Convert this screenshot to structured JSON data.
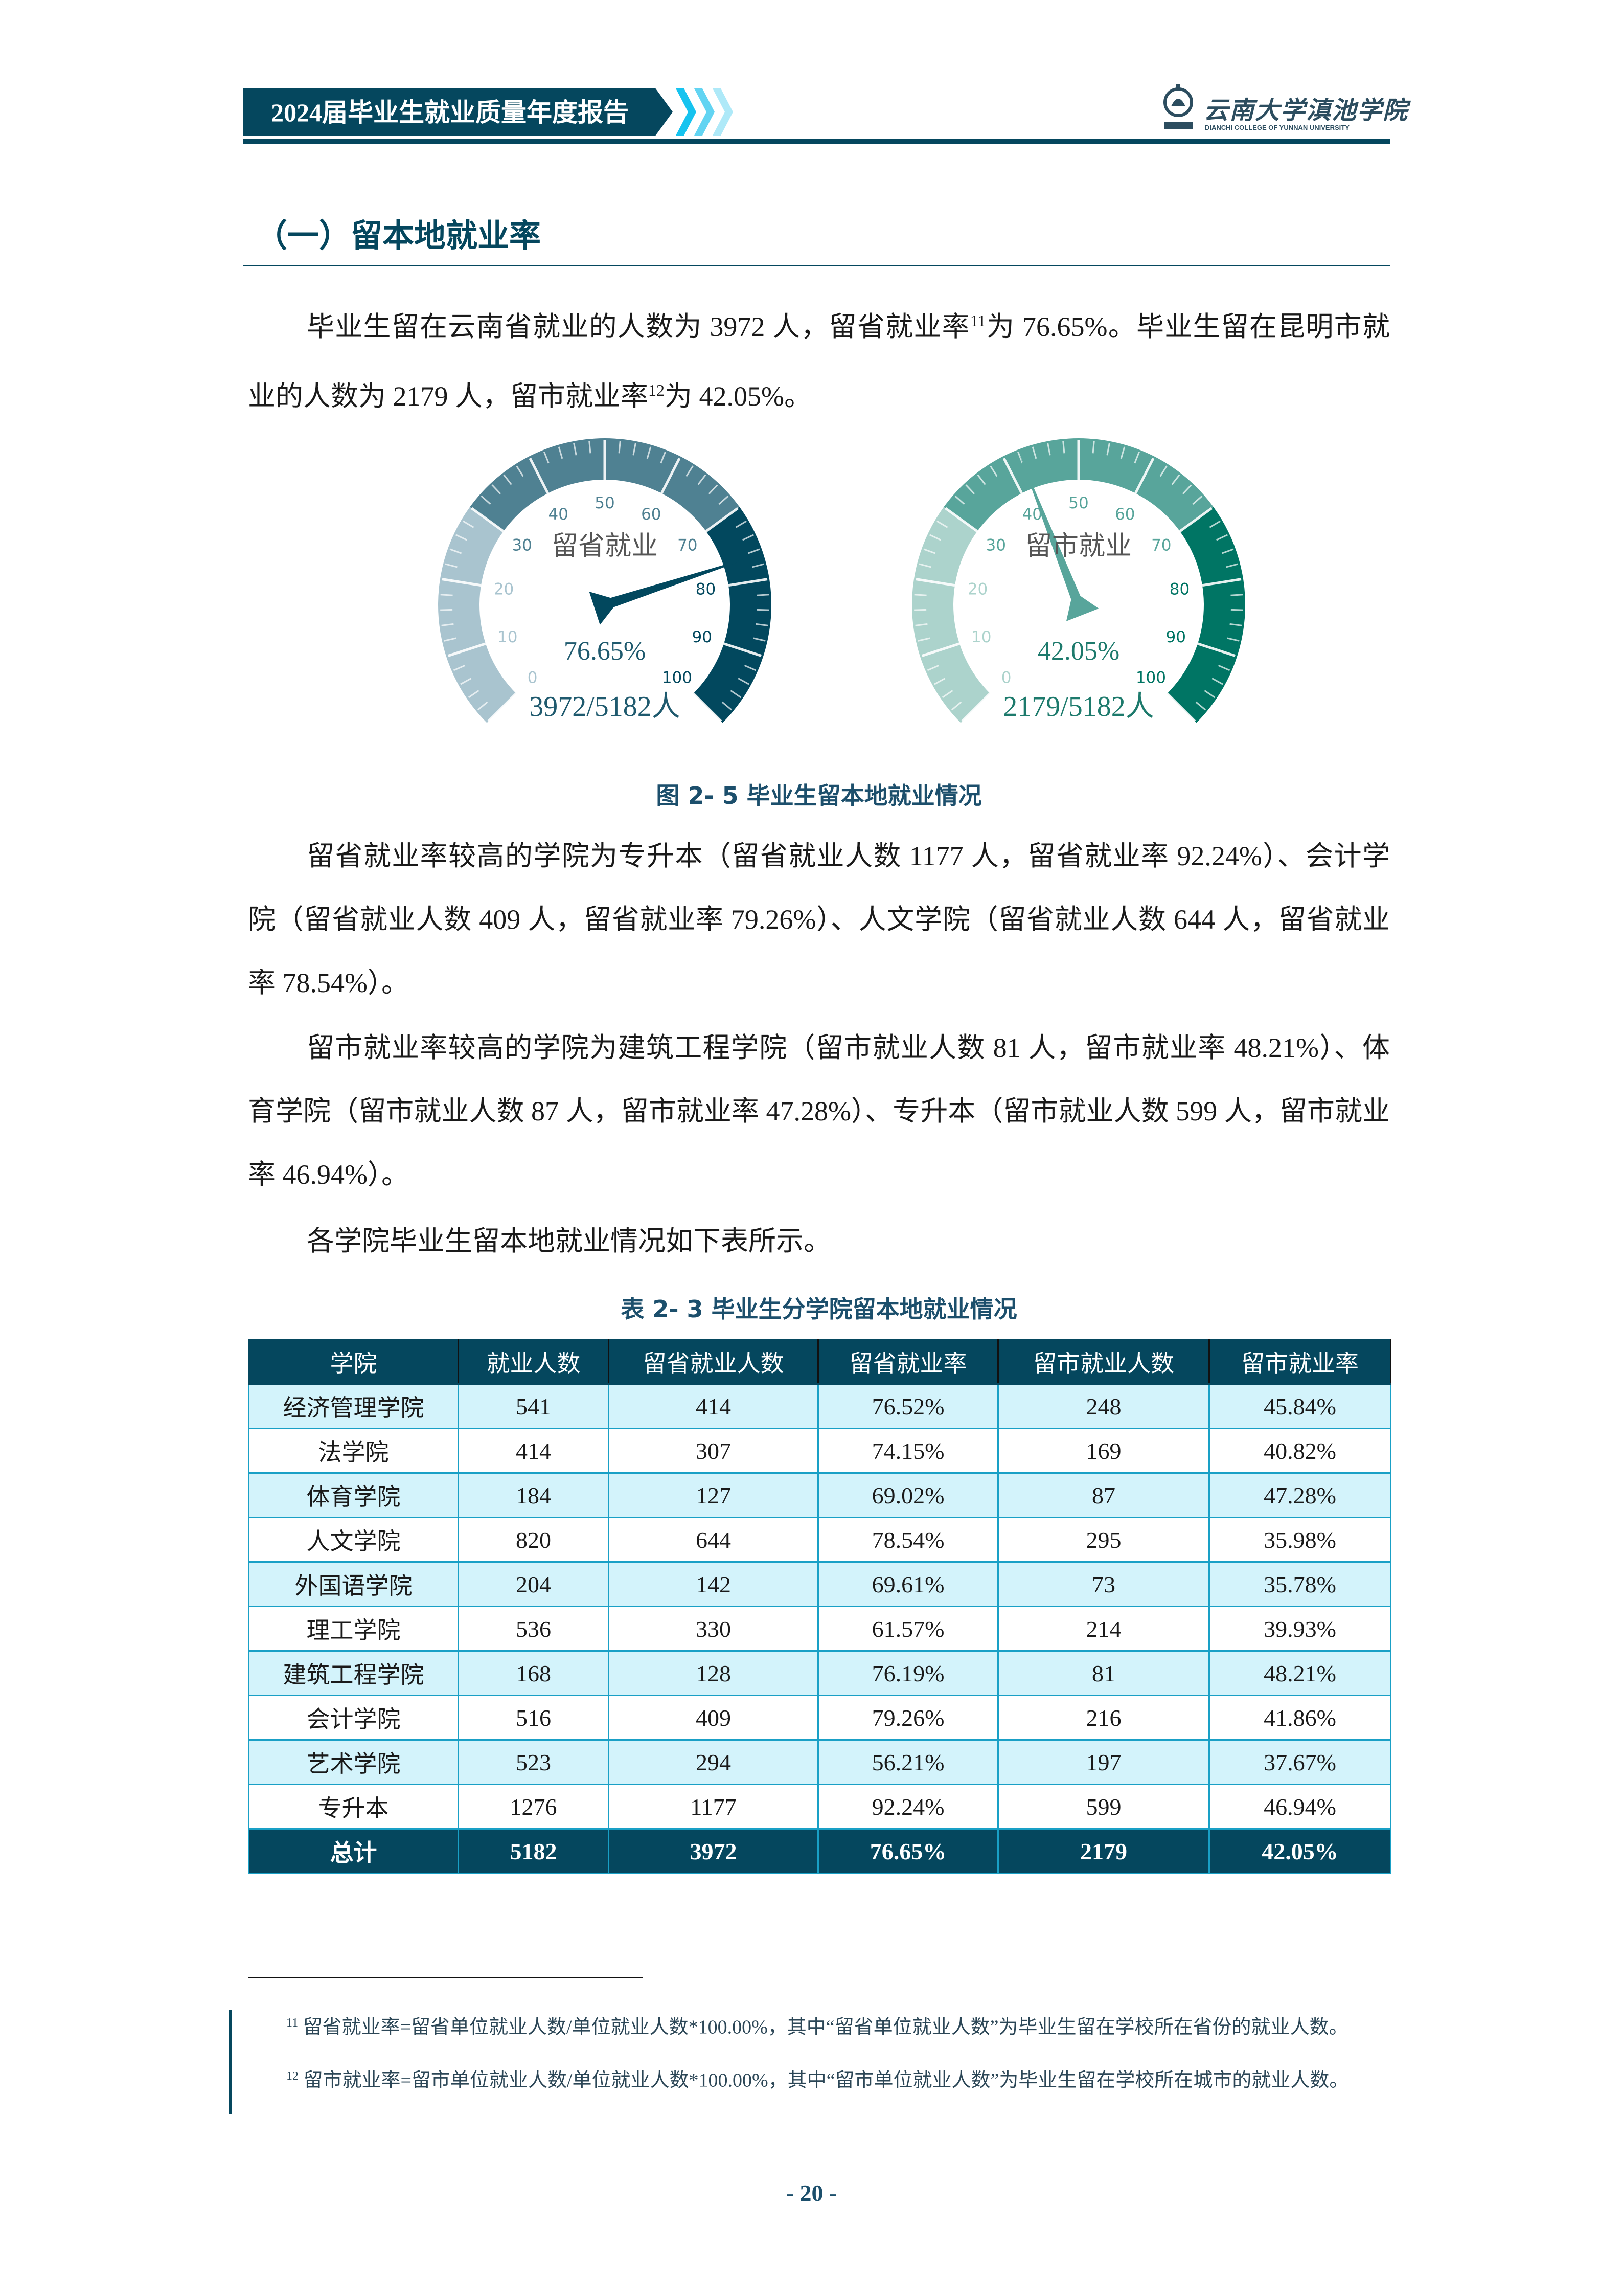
{
  "header": {
    "title": "2024届毕业生就业质量年度报告",
    "logo_cn": "云南大学滇池学院",
    "logo_en": "DIANCHI COLLEGE OF YUNNAN UNIVERSITY",
    "logo_badge": "滇池学院",
    "colors": {
      "primary": "#05475e",
      "chevrons": [
        "#16c3ef",
        "#62d4f2",
        "#aee9f8"
      ]
    }
  },
  "section": {
    "title": "（一）留本地就业率"
  },
  "paragraphs": {
    "p1_a": "毕业生留在云南省就业的人数为 3972 人，留省就业率",
    "p1_sup1": "11",
    "p1_b": "为 76.65%。毕业生留在昆明市就业的人数为 2179 人，留市就业率",
    "p1_sup2": "12",
    "p1_c": "为 42.05%。",
    "p2": "留省就业率较高的学院为专升本（留省就业人数 1177 人，留省就业率 92.24%）、会计学院（留省就业人数 409 人，留省就业率 79.26%）、人文学院（留省就业人数 644 人，留省就业率 78.54%）。",
    "p3": "留市就业率较高的学院为建筑工程学院（留市就业人数 81 人，留市就业率 48.21%）、体育学院（留市就业人数 87 人，留市就业率 47.28%）、专升本（留市就业人数 599 人，留市就业率 46.94%）。",
    "p4": "各学院毕业生留本地就业情况如下表所示。"
  },
  "chart_data": [
    {
      "type": "gauge",
      "title": "留省就业",
      "value": 76.65,
      "value_label": "76.65%",
      "count_label": "3972/5182人",
      "range": [
        0,
        100
      ],
      "ticks": [
        "0",
        "10",
        "20",
        "30",
        "40",
        "50",
        "60",
        "70",
        "80",
        "90",
        "100"
      ],
      "bands": [
        {
          "from": 0,
          "to": 30,
          "color": "#a9c4cf"
        },
        {
          "from": 30,
          "to": 70,
          "color": "#4f8192"
        },
        {
          "from": 70,
          "to": 100,
          "color": "#02485e"
        }
      ],
      "text_color": "#1f5a6e"
    },
    {
      "type": "gauge",
      "title": "留市就业",
      "value": 42.05,
      "value_label": "42.05%",
      "count_label": "2179/5182人",
      "range": [
        0,
        100
      ],
      "ticks": [
        "0",
        "10",
        "20",
        "30",
        "40",
        "50",
        "60",
        "70",
        "80",
        "90",
        "100"
      ],
      "bands": [
        {
          "from": 0,
          "to": 30,
          "color": "#acd3cc"
        },
        {
          "from": 30,
          "to": 70,
          "color": "#58a59b"
        },
        {
          "from": 70,
          "to": 100,
          "color": "#007564"
        }
      ],
      "text_color": "#1d7a6c"
    }
  ],
  "figure_caption": "图 2- 5  毕业生留本地就业情况",
  "table": {
    "caption": "表 2- 3  毕业生分学院留本地就业情况",
    "headers": [
      "学院",
      "就业人数",
      "留省就业人数",
      "留省就业率",
      "留市就业人数",
      "留市就业率"
    ],
    "rows": [
      [
        "经济管理学院",
        "541",
        "414",
        "76.52%",
        "248",
        "45.84%"
      ],
      [
        "法学院",
        "414",
        "307",
        "74.15%",
        "169",
        "40.82%"
      ],
      [
        "体育学院",
        "184",
        "127",
        "69.02%",
        "87",
        "47.28%"
      ],
      [
        "人文学院",
        "820",
        "644",
        "78.54%",
        "295",
        "35.98%"
      ],
      [
        "外国语学院",
        "204",
        "142",
        "69.61%",
        "73",
        "35.78%"
      ],
      [
        "理工学院",
        "536",
        "330",
        "61.57%",
        "214",
        "39.93%"
      ],
      [
        "建筑工程学院",
        "168",
        "128",
        "76.19%",
        "81",
        "48.21%"
      ],
      [
        "会计学院",
        "516",
        "409",
        "79.26%",
        "216",
        "41.86%"
      ],
      [
        "艺术学院",
        "523",
        "294",
        "56.21%",
        "197",
        "37.67%"
      ],
      [
        "专升本",
        "1276",
        "1177",
        "92.24%",
        "599",
        "46.94%"
      ]
    ],
    "total": [
      "总计",
      "5182",
      "3972",
      "76.65%",
      "2179",
      "42.05%"
    ]
  },
  "footnotes": [
    {
      "num": "11",
      "text": "留省就业率=留省单位就业人数/单位就业人数*100.00%，其中“留省单位就业人数”为毕业生留在学校所在省份的就业人数。"
    },
    {
      "num": "12",
      "text": "留市就业率=留市单位就业人数/单位就业人数*100.00%，其中“留市单位就业人数”为毕业生留在学校所在城市的就业人数。"
    }
  ],
  "page_number": "- 20 -"
}
